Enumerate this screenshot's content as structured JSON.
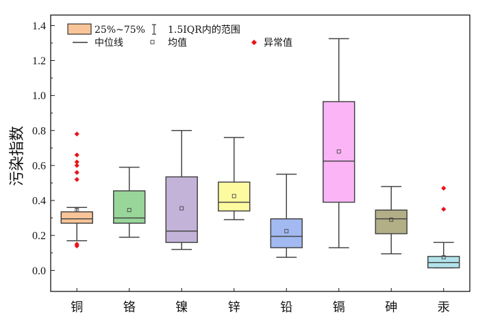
{
  "chart_data": {
    "type": "box",
    "ylabel": "污染指数",
    "ylim": [
      -0.12,
      1.46
    ],
    "yticks": [
      "0.0",
      "0.2",
      "0.4",
      "0.6",
      "0.8",
      "1.0",
      "1.2",
      "1.4"
    ],
    "grid": false,
    "legend": {
      "position": "top-left",
      "box_label": "25%~75%",
      "whisker_label": "1.5IQR内的范围",
      "median_label": "中位线",
      "mean_label": "均值",
      "outlier_label": "异常值"
    },
    "outlier_color": "#e8141b",
    "categories": [
      {
        "name": "铜",
        "color": "#f9c497",
        "whisker_low": 0.17,
        "q1": 0.27,
        "median": 0.295,
        "q3": 0.335,
        "whisker_high": 0.36,
        "mean": 0.345,
        "outliers": [
          0.14,
          0.15,
          0.52,
          0.56,
          0.6,
          0.62,
          0.66,
          0.78
        ]
      },
      {
        "name": "铬",
        "color": "#98d69a",
        "whisker_low": 0.19,
        "q1": 0.27,
        "median": 0.3,
        "q3": 0.455,
        "whisker_high": 0.59,
        "mean": 0.345,
        "outliers": []
      },
      {
        "name": "镍",
        "color": "#c3b3d8",
        "whisker_low": 0.12,
        "q1": 0.16,
        "median": 0.225,
        "q3": 0.535,
        "whisker_high": 0.8,
        "mean": 0.355,
        "outliers": []
      },
      {
        "name": "锌",
        "color": "#fdfaa0",
        "whisker_low": 0.29,
        "q1": 0.34,
        "median": 0.39,
        "q3": 0.505,
        "whisker_high": 0.76,
        "mean": 0.425,
        "outliers": []
      },
      {
        "name": "铅",
        "color": "#a2b9f2",
        "whisker_low": 0.075,
        "q1": 0.13,
        "median": 0.195,
        "q3": 0.295,
        "whisker_high": 0.55,
        "mean": 0.225,
        "outliers": []
      },
      {
        "name": "镉",
        "color": "#fbb5f7",
        "whisker_low": 0.13,
        "q1": 0.39,
        "median": 0.625,
        "q3": 0.965,
        "whisker_high": 1.325,
        "mean": 0.68,
        "outliers": []
      },
      {
        "name": "砷",
        "color": "#b2ae86",
        "whisker_low": 0.095,
        "q1": 0.21,
        "median": 0.295,
        "q3": 0.345,
        "whisker_high": 0.48,
        "mean": 0.29,
        "outliers": []
      },
      {
        "name": "汞",
        "color": "#b2e3ec",
        "whisker_low": 0.015,
        "q1": 0.015,
        "median": 0.045,
        "q3": 0.08,
        "whisker_high": 0.16,
        "mean": 0.075,
        "outliers": [
          0.35,
          0.47
        ]
      }
    ]
  }
}
